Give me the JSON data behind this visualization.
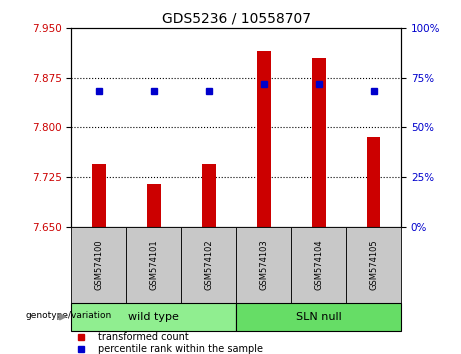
{
  "title": "GDS5236 / 10558707",
  "samples": [
    "GSM574100",
    "GSM574101",
    "GSM574102",
    "GSM574103",
    "GSM574104",
    "GSM574105"
  ],
  "bar_values": [
    7.745,
    7.715,
    7.745,
    7.915,
    7.905,
    7.785
  ],
  "dot_values": [
    7.855,
    7.855,
    7.855,
    7.865,
    7.865,
    7.855
  ],
  "ylim_left": [
    7.65,
    7.95
  ],
  "ylim_right": [
    0,
    100
  ],
  "yticks_left": [
    7.65,
    7.725,
    7.8,
    7.875,
    7.95
  ],
  "yticks_right": [
    0,
    25,
    50,
    75,
    100
  ],
  "hlines": [
    7.725,
    7.8,
    7.875
  ],
  "bar_color": "#cc0000",
  "dot_color": "#0000cc",
  "bar_baseline": 7.65,
  "genotype_label": "genotype/variation",
  "legend_bar_label": "transformed count",
  "legend_dot_label": "percentile rank within the sample",
  "tick_label_color_left": "#cc0000",
  "tick_label_color_right": "#0000cc",
  "sample_bg_color": "#c8c8c8",
  "group_defs": [
    {
      "label": "wild type",
      "start": 0,
      "end": 2,
      "color": "#90EE90"
    },
    {
      "label": "SLN null",
      "start": 3,
      "end": 5,
      "color": "#66dd66"
    }
  ]
}
